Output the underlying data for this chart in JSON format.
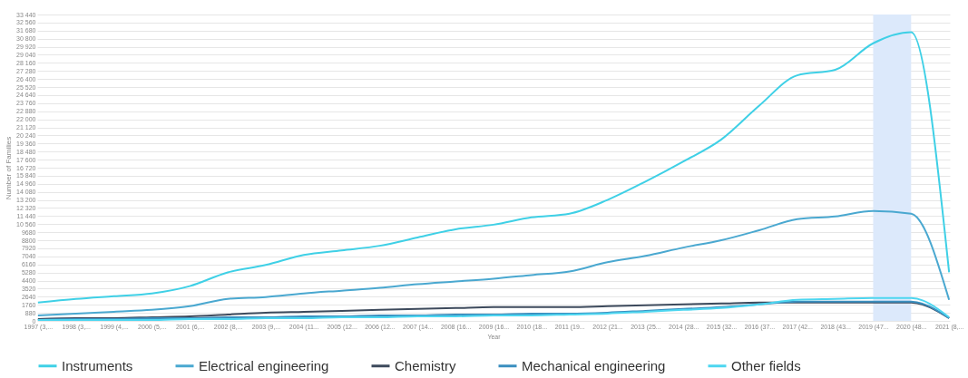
{
  "chart_data": {
    "type": "line",
    "xlabel": "Year",
    "ylabel": "Number of Families",
    "categories": [
      "1997 (3,...",
      "1998 (3,...",
      "1999 (4,...",
      "2000 (5,...",
      "2001 (6,...",
      "2002 (8,...",
      "2003 (9,...",
      "2004 (11...",
      "2005 (12...",
      "2006 (12...",
      "2007 (14...",
      "2008 (16...",
      "2009 (16...",
      "2010 (18...",
      "2011 (19...",
      "2012 (21...",
      "2013 (25...",
      "2014 (28...",
      "2015 (32...",
      "2016 (37...",
      "2017 (42...",
      "2018 (43...",
      "2019 (47...",
      "2020 (48...",
      "2021 (8,..."
    ],
    "series": [
      {
        "name": "Instruments",
        "color": "#3fd0e6",
        "values": [
          2000,
          2400,
          2700,
          3000,
          3800,
          5300,
          6100,
          7200,
          7700,
          8200,
          9100,
          10000,
          10500,
          11300,
          11700,
          13200,
          15200,
          17400,
          19800,
          23500,
          26800,
          27400,
          30300,
          31500,
          5300
        ]
      },
      {
        "name": "Electrical engineering",
        "color": "#4aa8d0",
        "values": [
          600,
          800,
          1000,
          1200,
          1600,
          2400,
          2600,
          3000,
          3300,
          3600,
          4000,
          4300,
          4600,
          5000,
          5400,
          6400,
          7100,
          8000,
          8800,
          9900,
          11100,
          11400,
          12000,
          11700,
          2300
        ]
      },
      {
        "name": "Chemistry",
        "color": "#3d4a5c",
        "values": [
          200,
          300,
          300,
          400,
          500,
          700,
          900,
          1000,
          1100,
          1200,
          1300,
          1400,
          1500,
          1500,
          1500,
          1600,
          1700,
          1800,
          1900,
          2000,
          2000,
          2000,
          2000,
          2000,
          300
        ]
      },
      {
        "name": "Mechanical engineering",
        "color": "#3a8fbf",
        "values": [
          100,
          200,
          200,
          300,
          300,
          400,
          400,
          500,
          500,
          600,
          600,
          700,
          700,
          800,
          800,
          900,
          1100,
          1300,
          1500,
          1800,
          2100,
          2100,
          2100,
          2100,
          300
        ]
      },
      {
        "name": "Other fields",
        "color": "#4dd6f0",
        "values": [
          100,
          100,
          100,
          100,
          200,
          200,
          300,
          300,
          400,
          400,
          500,
          500,
          600,
          600,
          700,
          800,
          1000,
          1200,
          1400,
          1800,
          2300,
          2400,
          2500,
          2500,
          400
        ]
      }
    ],
    "ylim": [
      0,
      33440
    ],
    "yticks": [
      0,
      880,
      1760,
      2640,
      3520,
      4400,
      5280,
      6160,
      7040,
      7920,
      8800,
      9680,
      {
        "value": 10560,
        "label": "10 560"
      },
      {
        "value": 11440,
        "label": "11 440"
      },
      {
        "value": 12320,
        "label": "12 320"
      },
      {
        "value": 13200,
        "label": "13 200"
      },
      {
        "value": 14080,
        "label": "14 080"
      },
      {
        "value": 14960,
        "label": "14 960"
      },
      {
        "value": 15840,
        "label": "15 840"
      },
      {
        "value": 16720,
        "label": "16 720"
      },
      {
        "value": 17600,
        "label": "17 600"
      },
      {
        "value": 18480,
        "label": "18 480"
      },
      {
        "value": 19360,
        "label": "19 360"
      },
      {
        "value": 20240,
        "label": "20 240"
      },
      {
        "value": 21120,
        "label": "21 120"
      },
      {
        "value": 22000,
        "label": "22 000"
      },
      {
        "value": 22880,
        "label": "22 880"
      },
      {
        "value": 23760,
        "label": "23 760"
      },
      {
        "value": 24640,
        "label": "24 640"
      },
      {
        "value": 25520,
        "label": "25 520"
      },
      {
        "value": 26400,
        "label": "26 400"
      },
      {
        "value": 27280,
        "label": "27 280"
      },
      {
        "value": 28160,
        "label": "28 160"
      },
      {
        "value": 29040,
        "label": "29 040"
      },
      {
        "value": 29920,
        "label": "29 920"
      },
      {
        "value": 30800,
        "label": "30 800"
      },
      {
        "value": 31680,
        "label": "31 680"
      },
      {
        "value": 32560,
        "label": "32 560"
      },
      {
        "value": 33440,
        "label": "33 440"
      }
    ],
    "bands": [
      {
        "axis": "x",
        "from": "2019 (47...",
        "to": "2020 (48...",
        "color": "#dce9fb"
      }
    ],
    "grid": "y",
    "legend": "bottom",
    "marker": "none",
    "line_style": "solid"
  }
}
